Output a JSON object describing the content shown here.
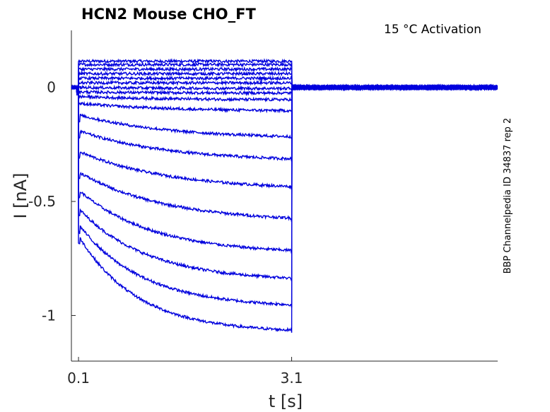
{
  "chart_data": {
    "type": "line",
    "title": "HCN2  Mouse  CHO_FT",
    "annotation": "15 °C  Activation",
    "side_label": "BBP Channelpedia ID 34837 rep 2",
    "xlabel": "t [s]",
    "ylabel": "I [nA]",
    "xlim": [
      0,
      6
    ],
    "ylim": [
      -1.2,
      0.25
    ],
    "x_ticks": [
      {
        "value": 0.1,
        "label": "0.1"
      },
      {
        "value": 3.1,
        "label": "3.1"
      }
    ],
    "y_ticks": [
      {
        "value": 0,
        "label": "0"
      },
      {
        "value": -0.5,
        "label": "-0.5"
      },
      {
        "value": -1,
        "label": "-1"
      }
    ],
    "grid": false,
    "line_color": "#0000dd",
    "step_start_s": 0.1,
    "step_end_s": 3.1,
    "series": [
      {
        "initial": 0.115,
        "steady": 0.115
      },
      {
        "initial": 0.1,
        "steady": 0.1
      },
      {
        "initial": 0.08,
        "steady": 0.08
      },
      {
        "initial": 0.06,
        "steady": 0.06
      },
      {
        "initial": 0.04,
        "steady": 0.04
      },
      {
        "initial": 0.02,
        "steady": 0.02
      },
      {
        "initial": 0.0,
        "steady": -0.005
      },
      {
        "initial": -0.02,
        "steady": -0.025
      },
      {
        "initial": -0.04,
        "steady": -0.055
      },
      {
        "initial": -0.07,
        "steady": -0.105
      },
      {
        "initial": -0.12,
        "steady": -0.225
      },
      {
        "initial": -0.19,
        "steady": -0.325
      },
      {
        "initial": -0.28,
        "steady": -0.45
      },
      {
        "initial": -0.37,
        "steady": -0.59
      },
      {
        "initial": -0.45,
        "steady": -0.73
      },
      {
        "initial": -0.53,
        "steady": -0.85
      },
      {
        "initial": -0.6,
        "steady": -0.965
      },
      {
        "initial": -0.65,
        "steady": -1.075
      }
    ]
  }
}
